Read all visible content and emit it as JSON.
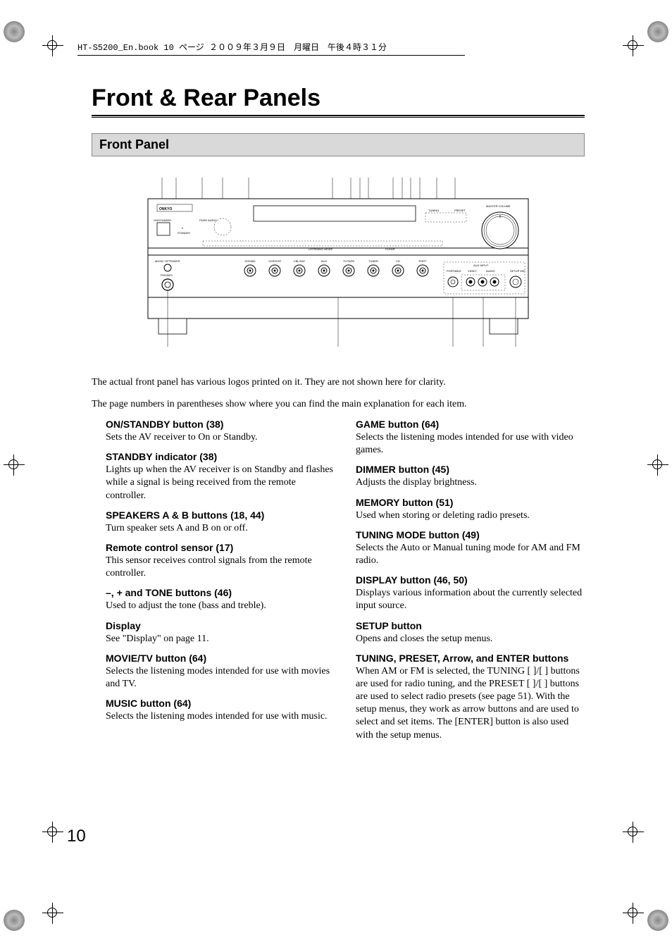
{
  "meta": {
    "header_line": "HT-S5200_En.book  10 ページ  ２００９年３月９日　月曜日　午後４時３１分"
  },
  "title": "Front & Rear Panels",
  "section": "Front Panel",
  "diagram": {
    "brand": "ONKYO",
    "labels": {
      "master_volume": "MASTER VOLUME",
      "on_standby": "ON/STANDBY",
      "standby": "STANDBY",
      "music_opt": "MUSIC OPTIMIZER",
      "phones": "PHONES",
      "aux_input": "AUX INPUT",
      "portable": "PORTABLE",
      "video": "VIDEO",
      "audio": "AUDIO",
      "setup_mic": "SETUP MIC",
      "tuning": "TUNING",
      "preset": "PRESET",
      "listening_mode": "LISTENING MODE",
      "clear": "CLEAR",
      "pure_audio": "PURE AUDIO"
    },
    "input_buttons": [
      "DVD/BD",
      "VCR/DVR",
      "CBL/SAT",
      "AUX",
      "TV/TAPE",
      "TUNER",
      "CD",
      "PORT"
    ]
  },
  "intro": {
    "p1": "The actual front panel has various logos printed on it. They are not shown here for clarity.",
    "p2": "The page numbers in parentheses show where you can find the main explanation for each item."
  },
  "left_items": [
    {
      "title": "ON/STANDBY button (38)",
      "desc": "Sets the AV receiver to On or Standby."
    },
    {
      "title": "STANDBY indicator (38)",
      "desc": "Lights up when the AV receiver is on Standby and flashes while a signal is being received from the remote controller."
    },
    {
      "title": "SPEAKERS A & B buttons (18, 44)",
      "desc": "Turn speaker sets A and B on or off."
    },
    {
      "title": "Remote control sensor (17)",
      "desc": "This sensor receives control signals from the remote controller."
    },
    {
      "title": "–, + and TONE buttons (46)",
      "desc": "Used to adjust the tone (bass and treble)."
    },
    {
      "title": "Display",
      "desc": "See \"Display\" on page 11."
    },
    {
      "title": "MOVIE/TV button (64)",
      "desc": "Selects the listening modes intended for use with movies and TV."
    },
    {
      "title": "MUSIC button (64)",
      "desc": "Selects the listening modes intended for use with music."
    }
  ],
  "right_items": [
    {
      "title": "GAME button (64)",
      "desc": "Selects the listening modes intended for use with video games."
    },
    {
      "title": "DIMMER button (45)",
      "desc": "Adjusts the display brightness."
    },
    {
      "title": "MEMORY button (51)",
      "desc": "Used when storing or deleting radio presets."
    },
    {
      "title": "TUNING MODE button (49)",
      "desc": "Selects the Auto or Manual tuning mode for AM and FM radio."
    },
    {
      "title": "DISPLAY button (46, 50)",
      "desc": "Displays various information about the currently selected input source."
    },
    {
      "title": "SETUP button",
      "desc": "Opens and closes the setup menus."
    },
    {
      "title": "TUNING, PRESET, Arrow, and ENTER buttons",
      "desc": "When AM or FM is selected, the TUNING [   ]/[   ] buttons are used for radio tuning, and the PRESET [   ]/[   ] buttons are used to select radio presets (see page 51). With the setup menus, they work as arrow buttons and are used to select and set items. The [ENTER] button is also used with the setup menus."
    }
  ],
  "page_number": "10",
  "colors": {
    "heading_bg": "#d9d9d9",
    "text": "#000000",
    "bg": "#ffffff"
  }
}
